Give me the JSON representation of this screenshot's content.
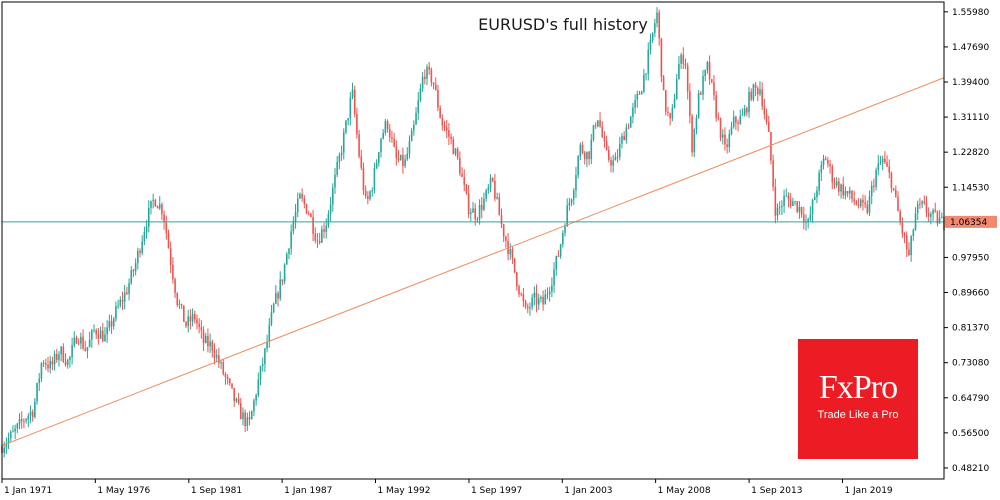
{
  "colors": {
    "bull": "#26a69a",
    "bear": "#ef5350",
    "trendline": "#f08a5d",
    "price_line": "#26a69a",
    "price_badge_bg": "#ef8a70",
    "frame": "#000000",
    "logo_bg": "#ec1c24",
    "logo_text": "#ffffff"
  },
  "logo": {
    "name": "FxPro",
    "tagline": "Trade Like a Pro"
  },
  "chart_data": {
    "type": "candlestick",
    "title": "EURUSD's full history",
    "symbol": "EURUSD",
    "price_scale": {
      "ylim": [
        0.456,
        1.583
      ],
      "ticks": [
        "1.55980",
        "1.47690",
        "1.39400",
        "1.31110",
        "1.22820",
        "1.14530",
        "1.06354",
        "0.97950",
        "0.89660",
        "0.81370",
        "0.73080",
        "0.64790",
        "0.56500",
        "0.48210"
      ]
    },
    "current_price": {
      "label": "1.06354",
      "value": 1.0635
    },
    "time_axis": {
      "range": [
        1971,
        2024.8
      ],
      "ticks": [
        {
          "label": "1 Jan 1971",
          "x": 1971.0
        },
        {
          "label": "1 May 1976",
          "x": 1976.33
        },
        {
          "label": "1 Sep 1981",
          "x": 1981.67
        },
        {
          "label": "1 Jan 1987",
          "x": 1987.0
        },
        {
          "label": "1 May 1992",
          "x": 1992.33
        },
        {
          "label": "1 Sep 1997",
          "x": 1997.67
        },
        {
          "label": "1 Jan 2003",
          "x": 2003.0
        },
        {
          "label": "1 May 2008",
          "x": 2008.33
        },
        {
          "label": "1 Sep 2013",
          "x": 2013.67
        },
        {
          "label": "1 Jan 2019",
          "x": 2019.0
        }
      ]
    },
    "trendline": {
      "from": {
        "x": 1971.0,
        "y": 0.535
      },
      "to": {
        "x": 2024.8,
        "y": 1.404
      }
    },
    "price_path": [
      [
        1971.0,
        0.535
      ],
      [
        1971.6,
        0.56
      ],
      [
        1972.3,
        0.6
      ],
      [
        1972.8,
        0.62
      ],
      [
        1973.3,
        0.74
      ],
      [
        1973.8,
        0.72
      ],
      [
        1974.3,
        0.76
      ],
      [
        1974.8,
        0.73
      ],
      [
        1975.3,
        0.8
      ],
      [
        1975.8,
        0.76
      ],
      [
        1976.3,
        0.81
      ],
      [
        1976.9,
        0.79
      ],
      [
        1977.5,
        0.85
      ],
      [
        1978.1,
        0.9
      ],
      [
        1978.6,
        0.96
      ],
      [
        1979.2,
        1.06
      ],
      [
        1979.7,
        1.12
      ],
      [
        1980.2,
        1.09
      ],
      [
        1980.6,
        0.98
      ],
      [
        1981.0,
        0.88
      ],
      [
        1981.5,
        0.82
      ],
      [
        1982.0,
        0.84
      ],
      [
        1982.5,
        0.78
      ],
      [
        1983.0,
        0.77
      ],
      [
        1983.5,
        0.72
      ],
      [
        1984.0,
        0.67
      ],
      [
        1984.5,
        0.62
      ],
      [
        1985.1,
        0.58
      ],
      [
        1985.6,
        0.68
      ],
      [
        1986.0,
        0.75
      ],
      [
        1986.5,
        0.86
      ],
      [
        1987.0,
        0.93
      ],
      [
        1987.5,
        1.04
      ],
      [
        1988.0,
        1.12
      ],
      [
        1988.5,
        1.09
      ],
      [
        1989.0,
        1.02
      ],
      [
        1989.5,
        1.06
      ],
      [
        1990.0,
        1.16
      ],
      [
        1990.5,
        1.26
      ],
      [
        1991.0,
        1.37
      ],
      [
        1991.4,
        1.22
      ],
      [
        1991.8,
        1.1
      ],
      [
        1992.2,
        1.16
      ],
      [
        1992.6,
        1.26
      ],
      [
        1993.0,
        1.3
      ],
      [
        1993.5,
        1.21
      ],
      [
        1994.0,
        1.2
      ],
      [
        1994.5,
        1.28
      ],
      [
        1995.1,
        1.42
      ],
      [
        1995.6,
        1.4
      ],
      [
        1996.1,
        1.3
      ],
      [
        1996.6,
        1.26
      ],
      [
        1997.1,
        1.2
      ],
      [
        1997.6,
        1.1
      ],
      [
        1998.1,
        1.08
      ],
      [
        1998.6,
        1.12
      ],
      [
        1999.0,
        1.16
      ],
      [
        1999.5,
        1.06
      ],
      [
        2000.0,
        0.99
      ],
      [
        2000.5,
        0.91
      ],
      [
        2000.9,
        0.85
      ],
      [
        2001.4,
        0.88
      ],
      [
        2001.9,
        0.87
      ],
      [
        2002.4,
        0.93
      ],
      [
        2002.8,
        0.99
      ],
      [
        2003.2,
        1.08
      ],
      [
        2003.6,
        1.14
      ],
      [
        2004.0,
        1.24
      ],
      [
        2004.5,
        1.22
      ],
      [
        2005.0,
        1.32
      ],
      [
        2005.5,
        1.22
      ],
      [
        2006.0,
        1.2
      ],
      [
        2006.5,
        1.27
      ],
      [
        2007.0,
        1.32
      ],
      [
        2007.5,
        1.38
      ],
      [
        2008.0,
        1.47
      ],
      [
        2008.4,
        1.56
      ],
      [
        2008.8,
        1.35
      ],
      [
        2009.2,
        1.29
      ],
      [
        2009.6,
        1.43
      ],
      [
        2010.0,
        1.46
      ],
      [
        2010.4,
        1.24
      ],
      [
        2010.8,
        1.36
      ],
      [
        2011.3,
        1.43
      ],
      [
        2011.8,
        1.32
      ],
      [
        2012.3,
        1.23
      ],
      [
        2012.8,
        1.3
      ],
      [
        2013.3,
        1.31
      ],
      [
        2013.8,
        1.37
      ],
      [
        2014.3,
        1.38
      ],
      [
        2014.8,
        1.26
      ],
      [
        2015.2,
        1.08
      ],
      [
        2015.7,
        1.12
      ],
      [
        2016.2,
        1.11
      ],
      [
        2016.7,
        1.09
      ],
      [
        2017.0,
        1.05
      ],
      [
        2017.5,
        1.14
      ],
      [
        2018.0,
        1.22
      ],
      [
        2018.5,
        1.16
      ],
      [
        2019.0,
        1.14
      ],
      [
        2019.5,
        1.12
      ],
      [
        2020.0,
        1.1
      ],
      [
        2020.4,
        1.09
      ],
      [
        2020.9,
        1.18
      ],
      [
        2021.3,
        1.21
      ],
      [
        2021.8,
        1.16
      ],
      [
        2022.3,
        1.06
      ],
      [
        2022.8,
        0.98
      ],
      [
        2023.2,
        1.09
      ],
      [
        2023.6,
        1.1
      ],
      [
        2024.0,
        1.08
      ],
      [
        2024.8,
        1.06
      ]
    ]
  }
}
